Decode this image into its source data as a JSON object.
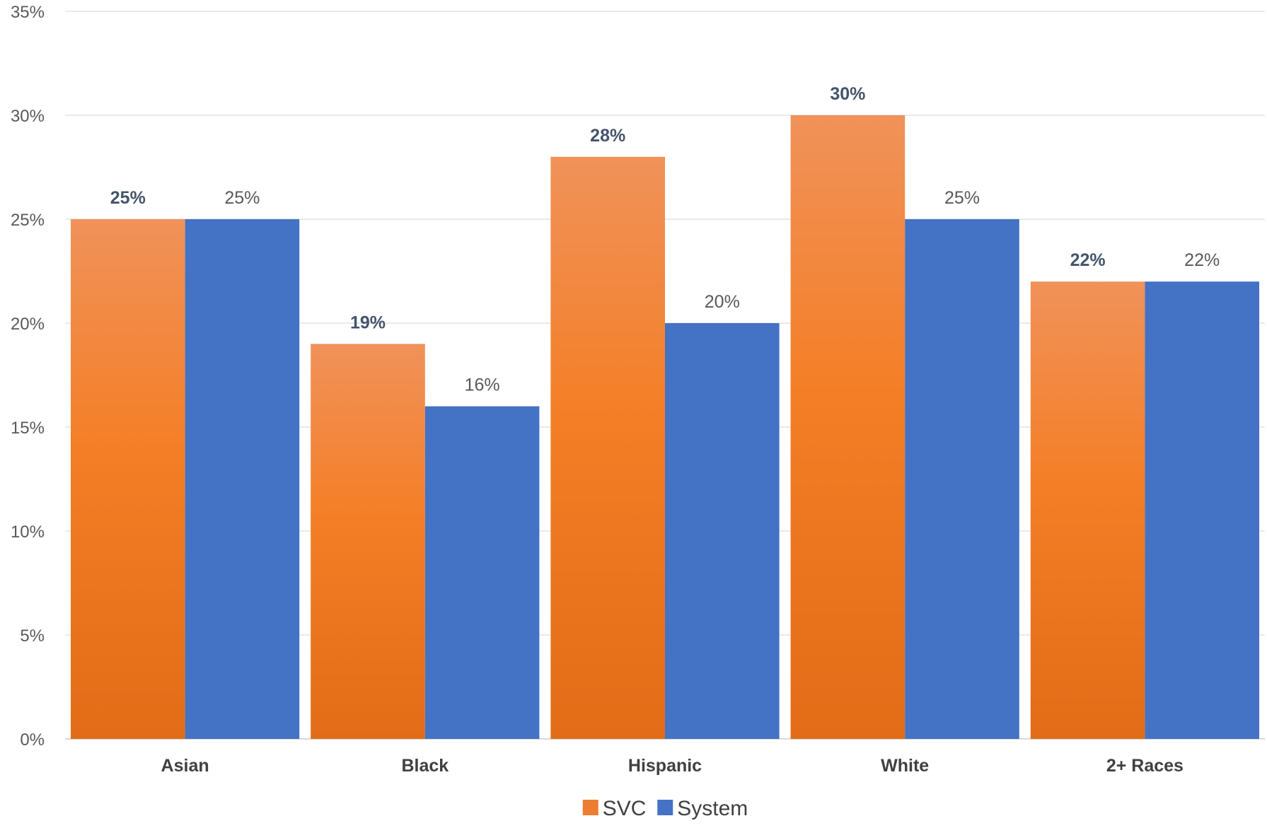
{
  "chart_data": {
    "type": "bar",
    "categories": [
      "Asian",
      "Black",
      "Hispanic",
      "White",
      "2+ Races"
    ],
    "series": [
      {
        "name": "SVC",
        "values": [
          25,
          19,
          28,
          30,
          22
        ],
        "color": "#ed7d31",
        "labels": [
          "25%",
          "19%",
          "28%",
          "30%",
          "22%"
        ]
      },
      {
        "name": "System",
        "values": [
          25,
          16,
          20,
          25,
          22
        ],
        "color": "#4472c4",
        "labels": [
          "25%",
          "16%",
          "20%",
          "25%",
          "22%"
        ]
      }
    ],
    "ylim": [
      0,
      35
    ],
    "yticks": [
      0,
      5,
      10,
      15,
      20,
      25,
      30,
      35
    ],
    "ytick_labels": [
      "0%",
      "5%",
      "10%",
      "15%",
      "20%",
      "25%",
      "30%",
      "35%"
    ],
    "grid": true,
    "legend_position": "bottom"
  }
}
